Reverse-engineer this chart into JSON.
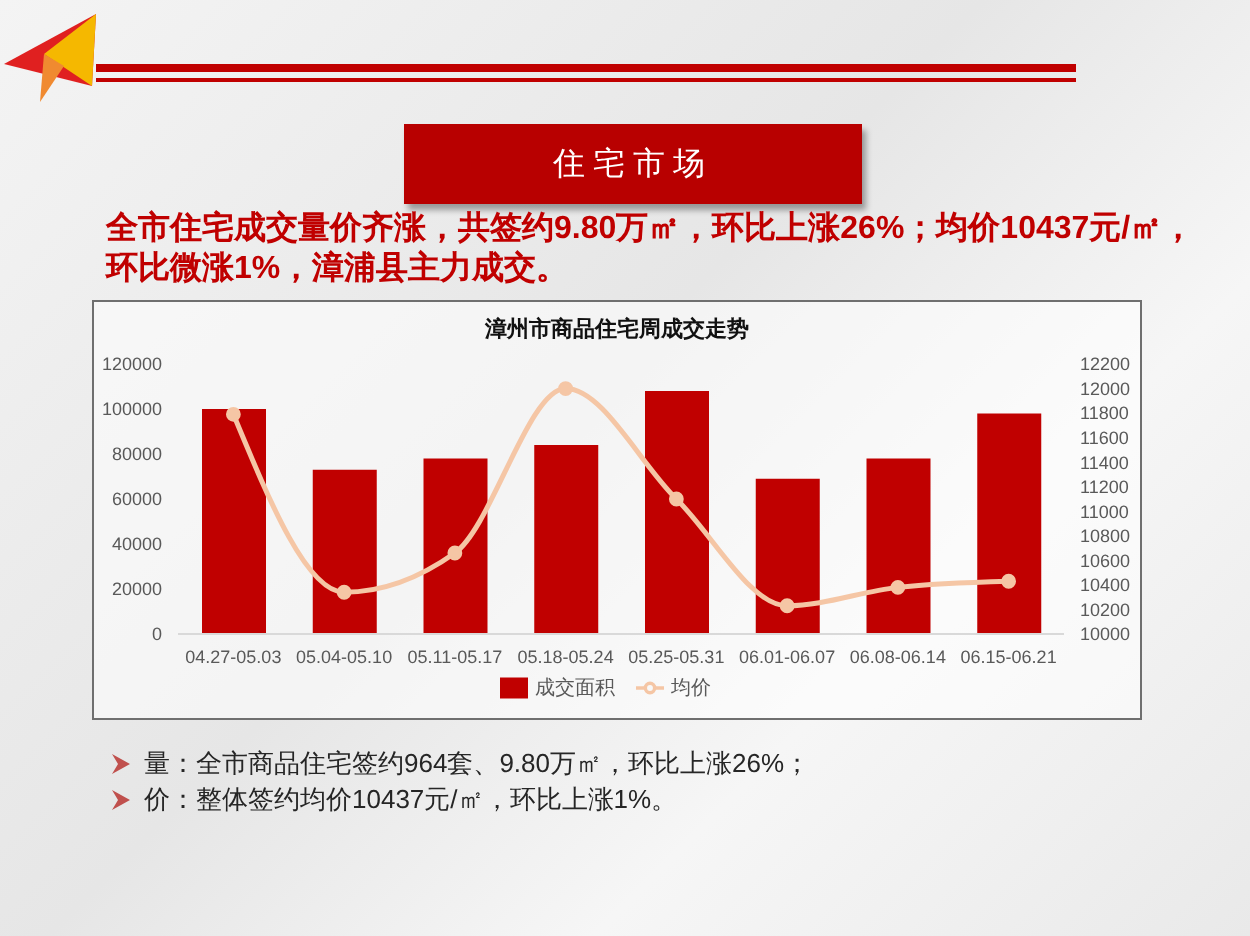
{
  "chart_data": {
    "type": "bar",
    "title": "漳州市商品住宅周成交走势",
    "categories": [
      "04.27-05.03",
      "05.04-05.10",
      "05.11-05.17",
      "05.18-05.24",
      "05.25-05.31",
      "06.01-06.07",
      "06.08-06.14",
      "06.15-06.21"
    ],
    "series": [
      {
        "name": "成交面积",
        "color": "#c00000",
        "values": [
          100000,
          73000,
          78000,
          84000,
          108000,
          69000,
          78000,
          98000
        ]
      },
      {
        "name": "均价",
        "type": "line",
        "axis": "y2",
        "color": "#f5c6a5",
        "values": [
          11790,
          10340,
          10660,
          12000,
          11100,
          10230,
          10380,
          10430
        ]
      }
    ],
    "ylim": [
      0,
      120000
    ],
    "yticks": [
      0,
      20000,
      40000,
      60000,
      80000,
      100000,
      120000
    ],
    "y2lim": [
      10000,
      12200
    ],
    "y2ticks": [
      10000,
      10200,
      10400,
      10600,
      10800,
      11000,
      11200,
      11400,
      11600,
      11800,
      12000,
      12200
    ],
    "legend": "bottom",
    "marker": "circle",
    "annotations": [
      "住宅市场",
      "全市住宅成交量价齐涨，共签约9.80万㎡，环比上涨26%；均价10437元/㎡，环比微涨1%，漳浦县主力成交。",
      "量：全市商品住宅签约964套、9.80万㎡，环比上涨26%；",
      "价：整体签约均价10437元/㎡，环比上涨1%。"
    ]
  }
}
